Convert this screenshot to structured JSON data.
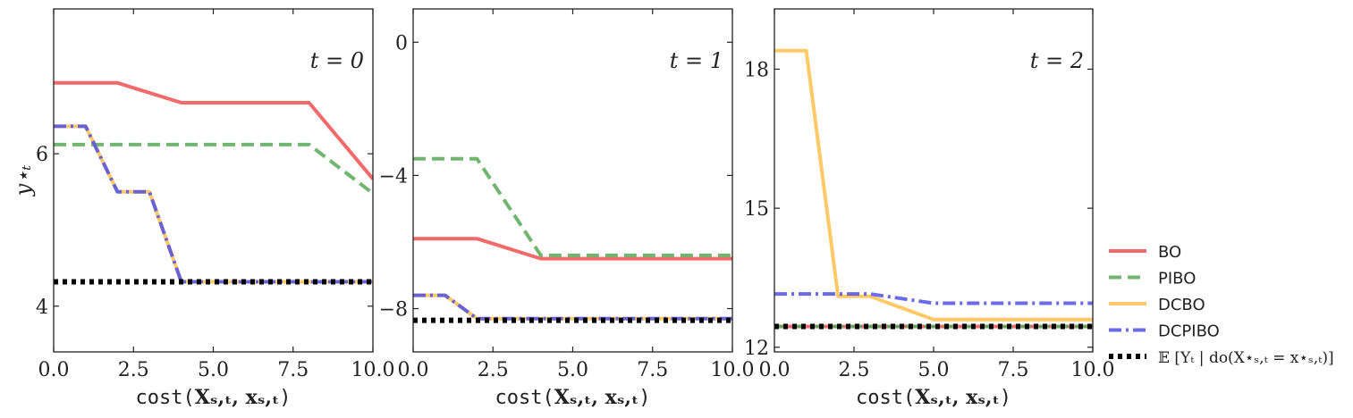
{
  "chart_data": [
    {
      "type": "line",
      "annotation": "t = 0",
      "xlabel": "cost(X_{s,t}, x_{s,t})",
      "ylabel": "y*_t",
      "xlim": [
        0,
        10
      ],
      "ylim": [
        3.4,
        7.9
      ],
      "xticks": [
        0,
        2.5,
        5,
        7.5,
        10
      ],
      "xtick_labels": [
        "0.0",
        "2.5",
        "5.0",
        "7.5",
        "10.0"
      ],
      "yticks": [
        4,
        6
      ],
      "ytick_labels": [
        "4",
        "6"
      ],
      "series": [
        {
          "name": "BO",
          "color": "#f05050",
          "style": "solid",
          "x": [
            0,
            2,
            4,
            8,
            10
          ],
          "y": [
            6.93,
            6.93,
            6.67,
            6.67,
            5.67
          ]
        },
        {
          "name": "PIBO",
          "color": "#58a858",
          "style": "dashed",
          "x": [
            0,
            8,
            10
          ],
          "y": [
            6.12,
            6.12,
            5.48
          ]
        },
        {
          "name": "DCBO",
          "color": "#ffc04c",
          "style": "solid",
          "x": [
            0,
            1,
            2,
            3,
            4,
            10
          ],
          "y": [
            6.36,
            6.36,
            5.5,
            5.5,
            4.32,
            4.32
          ]
        },
        {
          "name": "DCPIBO",
          "color": "#5050e6",
          "style": "dashdot",
          "x": [
            0,
            1,
            2,
            3,
            4,
            10
          ],
          "y": [
            6.36,
            6.36,
            5.5,
            5.5,
            4.32,
            4.32
          ]
        },
        {
          "name": "E[Y_t | do(X*_{s,t} = x*_{s,t})]",
          "color": "#000000",
          "style": "dotted",
          "x": [
            0,
            10
          ],
          "y": [
            4.32,
            4.32
          ]
        }
      ]
    },
    {
      "type": "line",
      "annotation": "t = 1",
      "xlabel": "cost(X_{s,t}, x_{s,t})",
      "xlim": [
        0,
        10
      ],
      "ylim": [
        -9.3,
        1.0
      ],
      "xticks": [
        0,
        2.5,
        5,
        7.5,
        10
      ],
      "xtick_labels": [
        "0.0",
        "2.5",
        "5.0",
        "7.5",
        "10.0"
      ],
      "yticks": [
        0,
        -4,
        -8
      ],
      "ytick_labels": [
        "0",
        "−4",
        "−8"
      ],
      "series": [
        {
          "name": "BO",
          "color": "#f05050",
          "style": "solid",
          "x": [
            0,
            2,
            4,
            10
          ],
          "y": [
            -5.9,
            -5.9,
            -6.5,
            -6.5
          ]
        },
        {
          "name": "PIBO",
          "color": "#58a858",
          "style": "dashed",
          "x": [
            0,
            2,
            4,
            10
          ],
          "y": [
            -3.5,
            -3.5,
            -6.4,
            -6.4
          ]
        },
        {
          "name": "DCBO",
          "color": "#ffc04c",
          "style": "solid",
          "x": [
            0,
            1,
            2,
            10
          ],
          "y": [
            -7.6,
            -7.6,
            -8.3,
            -8.3
          ]
        },
        {
          "name": "DCPIBO",
          "color": "#5050e6",
          "style": "dashdot",
          "x": [
            0,
            1,
            2,
            10
          ],
          "y": [
            -7.6,
            -7.6,
            -8.3,
            -8.3
          ]
        },
        {
          "name": "E[Y_t | do(X*_{s,t} = x*_{s,t})]",
          "color": "#000000",
          "style": "dotted",
          "x": [
            0,
            10
          ],
          "y": [
            -8.35,
            -8.35
          ]
        }
      ]
    },
    {
      "type": "line",
      "annotation": "t = 2",
      "xlabel": "cost(X_{s,t}, x_{s,t})",
      "xlim": [
        0,
        10
      ],
      "ylim": [
        11.9,
        19.3
      ],
      "xticks": [
        0,
        2.5,
        5,
        7.5,
        10
      ],
      "xtick_labels": [
        "0.0",
        "2.5",
        "5.0",
        "7.5",
        "10.0"
      ],
      "yticks": [
        12,
        15,
        18
      ],
      "ytick_labels": [
        "12",
        "15",
        "18"
      ],
      "series": [
        {
          "name": "BO",
          "color": "#f05050",
          "style": "solid",
          "x": [
            0,
            10
          ],
          "y": [
            12.45,
            12.45
          ]
        },
        {
          "name": "PIBO",
          "color": "#58a858",
          "style": "dashed",
          "x": [
            0,
            10
          ],
          "y": [
            12.45,
            12.45
          ]
        },
        {
          "name": "DCBO",
          "color": "#ffc04c",
          "style": "solid",
          "x": [
            0,
            1,
            2,
            3,
            5,
            10
          ],
          "y": [
            18.4,
            18.4,
            13.1,
            13.1,
            12.6,
            12.6
          ]
        },
        {
          "name": "DCPIBO",
          "color": "#5050e6",
          "style": "dashdot",
          "x": [
            0,
            3,
            5,
            10
          ],
          "y": [
            13.15,
            13.15,
            12.95,
            12.95
          ]
        },
        {
          "name": "E[Y_t | do(X*_{s,t} = x*_{s,t})]",
          "color": "#000000",
          "style": "dotted",
          "x": [
            0,
            10
          ],
          "y": [
            12.45,
            12.45
          ]
        }
      ]
    }
  ],
  "legend": {
    "placement": "right, below subplots",
    "entries": [
      {
        "label": "BO",
        "color": "#f05050",
        "style": "solid"
      },
      {
        "label": "PIBO",
        "color": "#58a858",
        "style": "dashed"
      },
      {
        "label": "DCBO",
        "color": "#ffc04c",
        "style": "solid"
      },
      {
        "label": "DCPIBO",
        "color": "#5050e6",
        "style": "dashdot"
      },
      {
        "label": "𝔼 [Yₜ | do(X⋆ₛ,ₜ = x⋆ₛ,ₜ)]",
        "color": "#000000",
        "style": "dotted"
      }
    ]
  },
  "labels": {
    "xlabel_text": "cost(",
    "xlabel_math": "Xₛ,ₜ, xₛ,ₜ",
    "xlabel_close": ")",
    "ylabel": "y⋆ₜ"
  }
}
